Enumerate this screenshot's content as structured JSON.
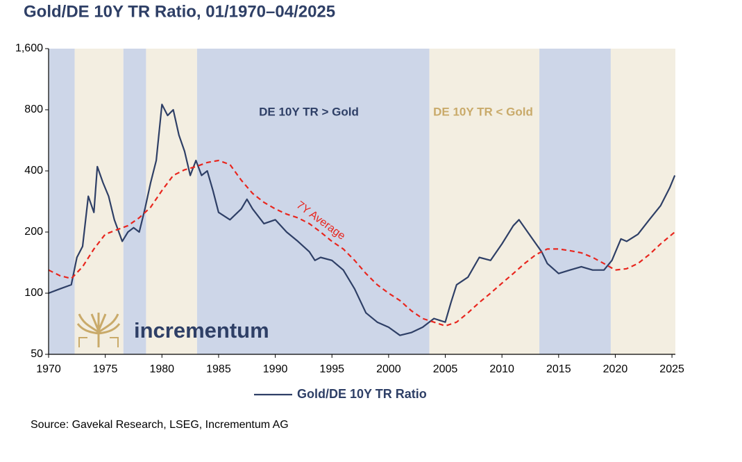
{
  "chart_data": {
    "type": "line",
    "title": "Gold/DE 10Y TR Ratio, 01/1970–04/2025",
    "source": "Source: Gavekal Research, LSEG, Incrementum AG",
    "logo_text": "incrementum",
    "log_scale": true,
    "grid": false,
    "xlim": [
      1970,
      2025.3
    ],
    "xticks": [
      1970,
      1975,
      1980,
      1985,
      1990,
      1995,
      2000,
      2005,
      2010,
      2015,
      2020,
      2025
    ],
    "ylim": [
      50,
      1600
    ],
    "yticks": [
      50,
      100,
      200,
      400,
      800,
      {
        "value": 1600,
        "label": "1,600"
      }
    ],
    "shaded_regions": [
      {
        "start": 1970,
        "end": 1972.3,
        "color": "#cdd6e8"
      },
      {
        "start": 1972.3,
        "end": 1976.6,
        "color": "#f3eee1"
      },
      {
        "start": 1976.6,
        "end": 1978.6,
        "color": "#cdd6e8"
      },
      {
        "start": 1978.6,
        "end": 1983.1,
        "color": "#f3eee1"
      },
      {
        "start": 1983.1,
        "end": 2003.6,
        "color": "#cdd6e8"
      },
      {
        "start": 2003.6,
        "end": 2013.3,
        "color": "#f3eee1"
      },
      {
        "start": 2013.3,
        "end": 2019.6,
        "color": "#cdd6e8"
      },
      {
        "start": 2019.6,
        "end": 2025.3,
        "color": "#f3eee1"
      }
    ],
    "annotations": [
      {
        "text": "DE 10Y TR > Gold",
        "color": "#2e3f66"
      },
      {
        "text": "DE 10Y TR < Gold",
        "color": "#c9aa6a"
      }
    ],
    "series": [
      {
        "name": "Gold/DE 10Y TR Ratio",
        "color": "#2e3f66",
        "dashed": false,
        "legend": true,
        "x": [
          1970.0,
          1971.0,
          1972.0,
          1972.5,
          1973.0,
          1973.5,
          1974.0,
          1974.3,
          1974.8,
          1975.3,
          1975.8,
          1976.5,
          1977.0,
          1977.5,
          1978.0,
          1978.5,
          1979.0,
          1979.5,
          1980.0,
          1980.5,
          1981.0,
          1981.5,
          1982.0,
          1982.5,
          1983.0,
          1983.5,
          1984.0,
          1984.5,
          1985.0,
          1986.0,
          1987.0,
          1987.5,
          1988.0,
          1989.0,
          1990.0,
          1991.0,
          1992.0,
          1993.0,
          1993.5,
          1994.0,
          1995.0,
          1996.0,
          1997.0,
          1998.0,
          1999.0,
          2000.0,
          2001.0,
          2002.0,
          2003.0,
          2004.0,
          2005.0,
          2005.5,
          2006.0,
          2007.0,
          2008.0,
          2009.0,
          2010.0,
          2011.0,
          2011.5,
          2012.0,
          2013.0,
          2013.5,
          2014.0,
          2015.0,
          2016.0,
          2017.0,
          2018.0,
          2019.0,
          2019.7,
          2020.5,
          2021.0,
          2022.0,
          2023.0,
          2024.0,
          2024.8,
          2025.25
        ],
        "values": [
          100,
          105,
          110,
          150,
          170,
          300,
          250,
          420,
          350,
          300,
          230,
          180,
          200,
          210,
          200,
          260,
          350,
          450,
          850,
          750,
          800,
          600,
          500,
          380,
          450,
          380,
          400,
          320,
          250,
          230,
          260,
          290,
          260,
          220,
          230,
          200,
          180,
          160,
          145,
          150,
          145,
          130,
          105,
          80,
          72,
          68,
          62,
          64,
          68,
          75,
          72,
          90,
          110,
          120,
          150,
          145,
          175,
          215,
          230,
          210,
          175,
          160,
          140,
          125,
          130,
          135,
          130,
          130,
          145,
          185,
          180,
          195,
          230,
          270,
          330,
          380
        ]
      },
      {
        "name": "7Y Average",
        "color": "#e8261e",
        "dashed": true,
        "legend": false,
        "x": [
          1970,
          1971,
          1972,
          1973,
          1974,
          1975,
          1976,
          1977,
          1978,
          1979,
          1980,
          1981,
          1982,
          1983,
          1984,
          1985,
          1986,
          1987,
          1988,
          1989,
          1990,
          1991,
          1992,
          1993,
          1994,
          1995,
          1996,
          1997,
          1998,
          1999,
          2000,
          2001,
          2002,
          2003,
          2004,
          2005,
          2006,
          2007,
          2008,
          2009,
          2010,
          2011,
          2012,
          2013,
          2014,
          2015,
          2016,
          2017,
          2018,
          2019,
          2020,
          2021,
          2022,
          2023,
          2024,
          2025.25
        ],
        "values": [
          130,
          122,
          118,
          135,
          165,
          195,
          205,
          215,
          235,
          265,
          320,
          380,
          405,
          420,
          440,
          450,
          430,
          360,
          310,
          280,
          260,
          245,
          235,
          220,
          200,
          180,
          165,
          145,
          125,
          110,
          100,
          92,
          82,
          75,
          72,
          69,
          72,
          80,
          90,
          100,
          112,
          125,
          140,
          155,
          165,
          165,
          162,
          158,
          150,
          140,
          130,
          132,
          140,
          155,
          175,
          200
        ]
      }
    ]
  }
}
